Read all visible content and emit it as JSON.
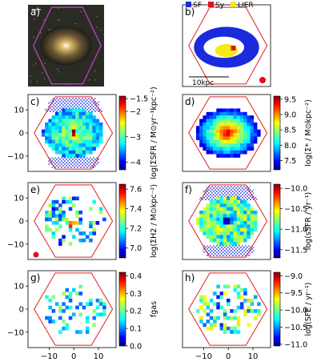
{
  "figure": {
    "bpt_legend": [
      {
        "label": "SF",
        "color": "#1a2bdc"
      },
      {
        "label": "Sy",
        "color": "#e3101a"
      },
      {
        "label": "LIER",
        "color": "#f5ea16"
      }
    ],
    "scalebar_label": "10kpc",
    "x_ticks": [
      "−10",
      "0",
      "10"
    ],
    "y_ticks": [
      "10",
      "0",
      "−10"
    ],
    "hexagon_color": "#e21d1d",
    "optical_hexagon_color": "#c443c9",
    "beam_color": "#e0101a"
  },
  "chart_data": [
    {
      "panel": "a)",
      "type": "image",
      "title": "a)"
    },
    {
      "panel": "b)",
      "type": "heatmap",
      "title": "b)",
      "legend": [
        "SF",
        "Sy",
        "LIER"
      ],
      "scalebar": "10kpc"
    },
    {
      "panel": "c)",
      "type": "heatmap",
      "title": "c)",
      "cbar_label": "log(ΣSFR / M⊙yr⁻¹kpc⁻²)",
      "cbar_ticks": [
        "−1.5",
        "−2",
        "−3",
        "−4"
      ],
      "clim": [
        -4.3,
        -1.4
      ]
    },
    {
      "panel": "d)",
      "type": "heatmap",
      "title": "d)",
      "cbar_label": "log(Σ* / M⊙kpc⁻²)",
      "cbar_ticks": [
        "9.5",
        "9.0",
        "8.5",
        "8.0",
        "7.5"
      ],
      "clim": [
        7.2,
        9.6
      ]
    },
    {
      "panel": "e)",
      "type": "heatmap",
      "title": "e)",
      "cbar_label": "log(ΣH2 / M⊙kpc⁻²)",
      "cbar_ticks": [
        "7.6",
        "7.4",
        "7.2",
        "7.0"
      ],
      "clim": [
        6.9,
        7.65
      ]
    },
    {
      "panel": "f)",
      "type": "heatmap",
      "title": "f)",
      "cbar_label": "log(sSFR / yr⁻¹)",
      "cbar_ticks": [
        "−10.0",
        "−10.5",
        "−11.0",
        "−11.5"
      ],
      "clim": [
        -11.7,
        -9.9
      ]
    },
    {
      "panel": "g)",
      "type": "heatmap",
      "title": "g)",
      "cbar_label": "fgas",
      "cbar_ticks": [
        "0.4",
        "0.3",
        "0.2",
        "0.1",
        "0.0"
      ],
      "clim": [
        0.0,
        0.42
      ]
    },
    {
      "panel": "h)",
      "type": "heatmap",
      "title": "h)",
      "cbar_label": "log(SFE / yr⁻¹)",
      "cbar_ticks": [
        "−9.0",
        "−9.5",
        "−10.0",
        "−10.5",
        "−11.0"
      ],
      "clim": [
        -11.05,
        -8.9
      ]
    }
  ]
}
